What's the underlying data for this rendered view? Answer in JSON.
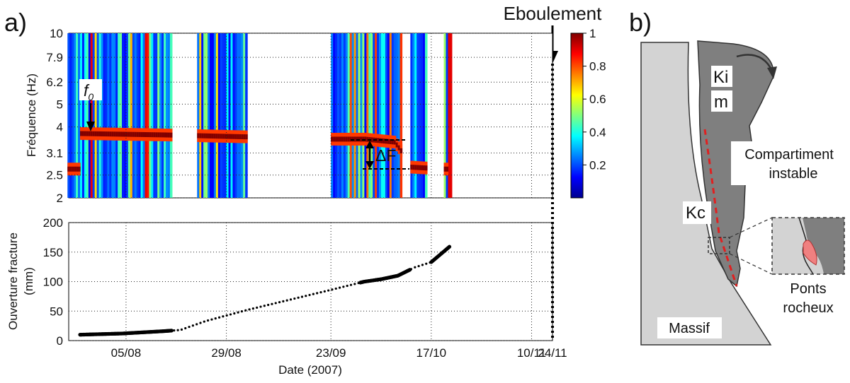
{
  "panel_a_label": "a)",
  "panel_b_label": "b)",
  "event_label": "Eboulement",
  "xlabel": "Date (2007)",
  "annotations": {
    "f0": "f",
    "f0_sub": "0",
    "delta_f": "ΔF"
  },
  "colorbar": {
    "ticks": [
      "1",
      "0.8",
      "0.6",
      "0.4",
      "0.2"
    ]
  },
  "chart_data": [
    {
      "type": "heatmap",
      "ylabel": "Fréquence (Hz)",
      "y_ticks": [
        "10",
        "7.9",
        "6.2",
        "5",
        "4",
        "3.1",
        "2.5",
        "2"
      ],
      "x_ticks": [
        "05/08",
        "29/08",
        "23/09",
        "17/10",
        "10/11",
        "24/11"
      ],
      "log_y": true,
      "color_range": [
        0,
        1
      ],
      "colormap": "jet",
      "fundamental_frequency_hz": [
        [
          0,
          3.75
        ],
        [
          20,
          3.7
        ],
        [
          40,
          3.63
        ],
        [
          55,
          3.55
        ],
        [
          68,
          3.55
        ],
        [
          75,
          3.45
        ],
        [
          79,
          2.7
        ],
        [
          87,
          2.65
        ]
      ],
      "data_gaps": [
        [
          22,
          28
        ],
        [
          40,
          60
        ],
        [
          77,
          79
        ],
        [
          83,
          87
        ]
      ],
      "event_day": 113
    },
    {
      "type": "scatter",
      "ylabel": "Ouverture fracture\n(mm)",
      "ylim": [
        0,
        200
      ],
      "y_ticks": [
        "200",
        "150",
        "100",
        "50",
        "0"
      ],
      "x_ticks": [
        "05/08",
        "29/08",
        "23/09",
        "17/10",
        "10/11",
        "24/11"
      ],
      "series": [
        {
          "x": [
            0,
            10,
            20,
            24,
            30,
            40,
            50,
            60,
            68,
            72,
            76,
            80,
            84,
            86,
            88.5
          ],
          "y": [
            10,
            12,
            16,
            18,
            33,
            52,
            69,
            86,
            100,
            104,
            110,
            124,
            133,
            145,
            160
          ]
        }
      ]
    }
  ],
  "diagram": {
    "labels": {
      "ki": "Ki",
      "m": "m",
      "compartment_1": "Compartiment",
      "compartment_2": "instable",
      "kc": "Kc",
      "bridges_1": "Ponts",
      "bridges_2": "rocheux",
      "massif": "Massif"
    },
    "colors": {
      "ki": "#1a9a3a",
      "m": "#2a2a8a",
      "kc": "#d62020"
    }
  }
}
